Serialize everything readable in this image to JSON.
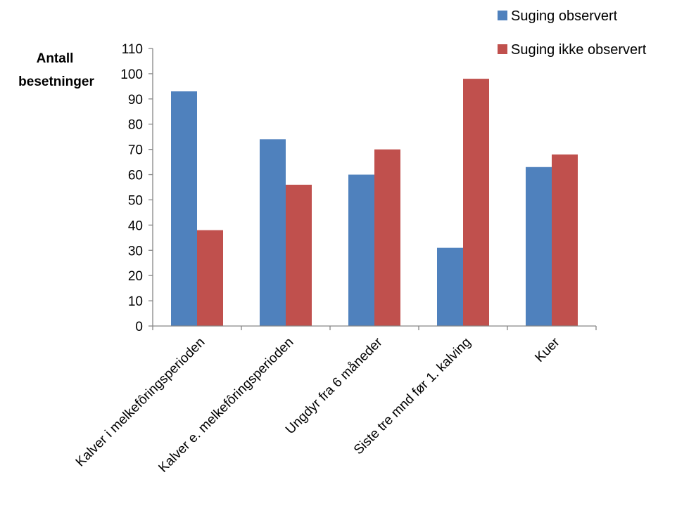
{
  "chart_data": {
    "type": "bar",
    "ylabel": [
      "Antall",
      "besetninger"
    ],
    "ylim": [
      0,
      110
    ],
    "ytick_step": 10,
    "grid": false,
    "legend_position": "top-right",
    "categories": [
      "Kalver i melkefôringsperioden",
      "Kalver e. melkefôringsperioden",
      "Ungdyr fra 6 måneder",
      "Siste tre mnd før 1. kalving",
      "Kuer"
    ],
    "series": [
      {
        "name": "Suging observert",
        "color": "#4F81BD",
        "values": [
          93,
          74,
          60,
          31,
          63
        ]
      },
      {
        "name": "Suging ikke observert",
        "color": "#C0504D",
        "values": [
          38,
          56,
          70,
          98,
          68
        ]
      }
    ]
  }
}
